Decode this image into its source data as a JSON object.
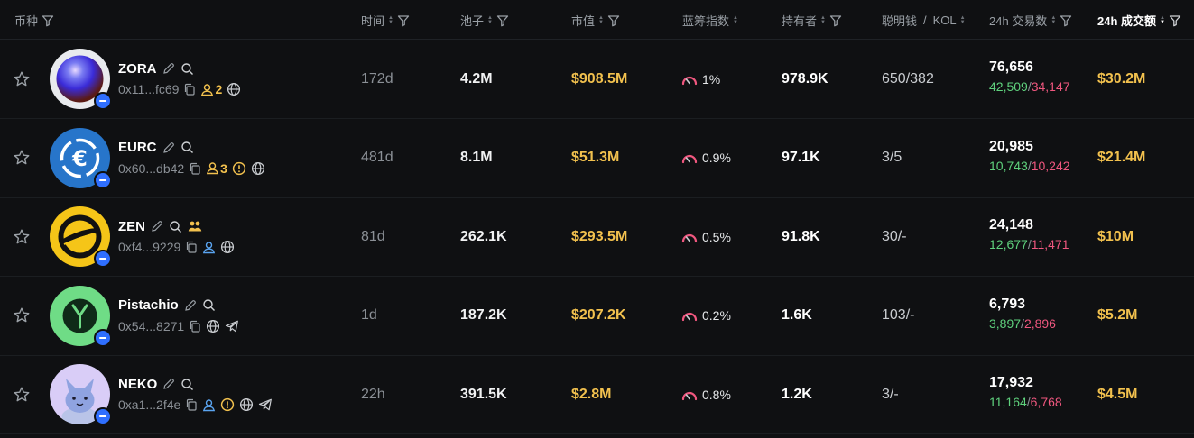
{
  "header": {
    "token": "币种",
    "age": "时间",
    "pool": "池子",
    "mcap": "市值",
    "bluechip": "蓝筹指数",
    "holders": "持有者",
    "smart": "聪明钱",
    "smart_sep": "/",
    "kol": "KOL",
    "txs": "24h 交易数",
    "volume": "24h 成交额"
  },
  "colors": {
    "buy": "#5fd17d",
    "sell": "#f0577f",
    "gold": "#f2c14e",
    "chain": "#2f6fff"
  },
  "rows": [
    {
      "name": "ZORA",
      "addr": "0x11...fc69",
      "dev_holders": "2",
      "warn": false,
      "team": false,
      "globe": true,
      "telegram": false,
      "age": "172d",
      "pool": "4.2M",
      "mcap": "$908.5M",
      "bluechip": "1%",
      "holders": "978.9K",
      "smart": "650/382",
      "txs": "76,656",
      "buys": "42,509",
      "sells": "34,147",
      "volume": "$30.2M",
      "avatar": "zora"
    },
    {
      "name": "EURC",
      "addr": "0x60...db42",
      "dev_holders": "3",
      "warn": true,
      "team": false,
      "globe": true,
      "telegram": false,
      "age": "481d",
      "pool": "8.1M",
      "mcap": "$51.3M",
      "bluechip": "0.9%",
      "holders": "97.1K",
      "smart": "3/5",
      "txs": "20,985",
      "buys": "10,743",
      "sells": "10,242",
      "volume": "$21.4M",
      "avatar": "eurc"
    },
    {
      "name": "ZEN",
      "addr": "0xf4...9229",
      "dev_holders": "",
      "warn": false,
      "team": true,
      "globe": true,
      "telegram": false,
      "age": "81d",
      "pool": "262.1K",
      "mcap": "$293.5M",
      "bluechip": "0.5%",
      "holders": "91.8K",
      "smart": "30/-",
      "txs": "24,148",
      "buys": "12,677",
      "sells": "11,471",
      "volume": "$10M",
      "avatar": "zen"
    },
    {
      "name": "Pistachio",
      "addr": "0x54...8271",
      "dev_holders": "",
      "warn": false,
      "team": false,
      "globe": true,
      "telegram": true,
      "age": "1d",
      "pool": "187.2K",
      "mcap": "$207.2K",
      "bluechip": "0.2%",
      "holders": "1.6K",
      "smart": "103/-",
      "txs": "6,793",
      "buys": "3,897",
      "sells": "2,896",
      "volume": "$5.2M",
      "avatar": "pistachio"
    },
    {
      "name": "NEKO",
      "addr": "0xa1...2f4e",
      "dev_holders": "",
      "warn": true,
      "team": false,
      "globe": true,
      "telegram": true,
      "age": "22h",
      "pool": "391.5K",
      "mcap": "$2.8M",
      "bluechip": "0.8%",
      "holders": "1.2K",
      "smart": "3/-",
      "txs": "17,932",
      "buys": "11,164",
      "sells": "6,768",
      "volume": "$4.5M",
      "avatar": "neko"
    }
  ]
}
